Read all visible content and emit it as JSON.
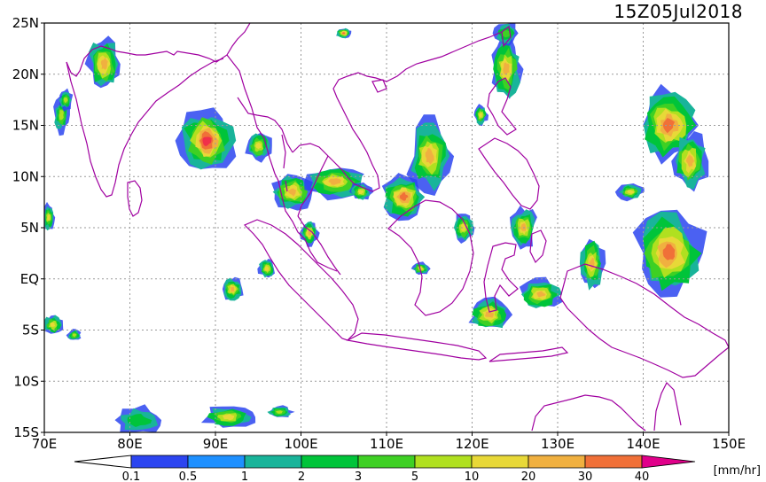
{
  "title": "15Z05Jul2018",
  "x_labels": [
    "70E",
    "80E",
    "90E",
    "100E",
    "110E",
    "120E",
    "130E",
    "140E",
    "150E"
  ],
  "y_labels": [
    "25N",
    "20N",
    "15N",
    "10N",
    "5N",
    "EQ",
    "5S",
    "10S",
    "15S"
  ],
  "colorbar": {
    "unit": "[mm/hr]",
    "ticks": [
      "0.1",
      "0.5",
      "1",
      "2",
      "3",
      "5",
      "10",
      "20",
      "30",
      "40"
    ],
    "colors": [
      "#2c45f0",
      "#1e90ff",
      "#19b49a",
      "#00c43a",
      "#3ed024",
      "#b0e020",
      "#e8d838",
      "#f0b040",
      "#f07038",
      "#f0304a",
      "#e0008a"
    ]
  },
  "coast_color": "#a000a0",
  "chart_data": {
    "type": "heatmap",
    "title": "15Z05Jul2018",
    "xlim": [
      70,
      150
    ],
    "ylim": [
      -15,
      25
    ],
    "xlabel": "",
    "ylabel": "",
    "grid": true,
    "units": "mm/hr",
    "levels": [
      0.1,
      0.5,
      1,
      2,
      3,
      5,
      10,
      20,
      30,
      40
    ],
    "rain_cells": [
      {
        "lon": 77,
        "lat": 21,
        "rx": 2.0,
        "ry": 2.6,
        "peak": 10
      },
      {
        "lon": 72,
        "lat": 16,
        "rx": 1.0,
        "ry": 1.8,
        "peak": 3
      },
      {
        "lon": 89,
        "lat": 13.5,
        "rx": 3.2,
        "ry": 3.0,
        "peak": 30
      },
      {
        "lon": 95,
        "lat": 13,
        "rx": 1.5,
        "ry": 1.5,
        "peak": 5
      },
      {
        "lon": 99,
        "lat": 8.5,
        "rx": 2.5,
        "ry": 1.8,
        "peak": 10
      },
      {
        "lon": 104,
        "lat": 9.5,
        "rx": 3.5,
        "ry": 1.6,
        "peak": 10
      },
      {
        "lon": 115,
        "lat": 12,
        "rx": 2.5,
        "ry": 3.5,
        "peak": 10
      },
      {
        "lon": 112,
        "lat": 8,
        "rx": 2.5,
        "ry": 2.2,
        "peak": 20
      },
      {
        "lon": 124,
        "lat": 20.5,
        "rx": 1.8,
        "ry": 3.0,
        "peak": 10
      },
      {
        "lon": 121,
        "lat": 16,
        "rx": 0.8,
        "ry": 1.0,
        "peak": 5
      },
      {
        "lon": 143,
        "lat": 15,
        "rx": 3.5,
        "ry": 3.5,
        "peak": 20
      },
      {
        "lon": 145.5,
        "lat": 11.5,
        "rx": 2.0,
        "ry": 3.0,
        "peak": 10
      },
      {
        "lon": 143,
        "lat": 2.5,
        "rx": 4.2,
        "ry": 4.2,
        "peak": 20
      },
      {
        "lon": 134,
        "lat": 1.5,
        "rx": 1.5,
        "ry": 2.6,
        "peak": 10
      },
      {
        "lon": 126,
        "lat": 5,
        "rx": 1.5,
        "ry": 2.0,
        "peak": 10
      },
      {
        "lon": 122,
        "lat": -3.5,
        "rx": 2.4,
        "ry": 1.6,
        "peak": 10
      },
      {
        "lon": 128,
        "lat": -1.5,
        "rx": 2.5,
        "ry": 1.5,
        "peak": 10
      },
      {
        "lon": 92,
        "lat": -1,
        "rx": 1.2,
        "ry": 1.2,
        "peak": 10
      },
      {
        "lon": 96,
        "lat": 1,
        "rx": 1.0,
        "ry": 1.0,
        "peak": 5
      },
      {
        "lon": 71,
        "lat": -4.5,
        "rx": 1.2,
        "ry": 1.0,
        "peak": 5
      },
      {
        "lon": 73.5,
        "lat": -5.5,
        "rx": 0.8,
        "ry": 0.6,
        "peak": 3
      },
      {
        "lon": 72.5,
        "lat": 17.5,
        "rx": 0.8,
        "ry": 1.0,
        "peak": 3
      },
      {
        "lon": 81,
        "lat": -13.8,
        "rx": 3.0,
        "ry": 1.4,
        "peak": 1
      },
      {
        "lon": 91.5,
        "lat": -13.5,
        "rx": 3.0,
        "ry": 1.1,
        "peak": 5
      },
      {
        "lon": 97.5,
        "lat": -13,
        "rx": 1.5,
        "ry": 0.6,
        "peak": 3
      },
      {
        "lon": 114,
        "lat": 1,
        "rx": 1.0,
        "ry": 0.6,
        "peak": 5
      },
      {
        "lon": 101,
        "lat": 4.5,
        "rx": 1.0,
        "ry": 1.2,
        "peak": 10
      },
      {
        "lon": 107,
        "lat": 8.5,
        "rx": 1.3,
        "ry": 0.9,
        "peak": 5
      },
      {
        "lon": 119,
        "lat": 5,
        "rx": 1.2,
        "ry": 1.5,
        "peak": 5
      },
      {
        "lon": 138.5,
        "lat": 8.5,
        "rx": 1.5,
        "ry": 0.8,
        "peak": 5
      },
      {
        "lon": 124,
        "lat": 24,
        "rx": 1.5,
        "ry": 1.2,
        "peak": 2
      },
      {
        "lon": 105,
        "lat": 24,
        "rx": 0.9,
        "ry": 0.5,
        "peak": 20
      },
      {
        "lon": 70.5,
        "lat": 6,
        "rx": 0.7,
        "ry": 1.3,
        "peak": 5
      }
    ]
  }
}
